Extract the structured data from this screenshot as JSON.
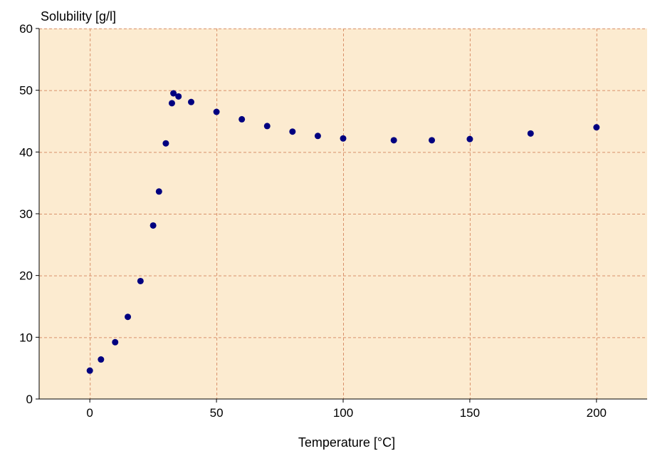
{
  "chart_data": {
    "type": "scatter",
    "ylabel": "Solubility [g/l]",
    "xlabel": "Temperature [°C]",
    "xlim": [
      -20,
      220
    ],
    "ylim": [
      0,
      60
    ],
    "x_ticks": [
      0,
      50,
      100,
      150,
      200
    ],
    "y_ticks": [
      0,
      10,
      20,
      30,
      40,
      50,
      60
    ],
    "grid": true,
    "colors": {
      "plot_background": "#fcebd0",
      "grid": "#d9916a",
      "marker": "#000080",
      "axis": "#000000"
    },
    "points": [
      {
        "x": 0,
        "y": 4.6
      },
      {
        "x": 4.4,
        "y": 6.4
      },
      {
        "x": 10,
        "y": 9.2
      },
      {
        "x": 15,
        "y": 13.3
      },
      {
        "x": 20,
        "y": 19.1
      },
      {
        "x": 25,
        "y": 28.1
      },
      {
        "x": 27.3,
        "y": 33.6
      },
      {
        "x": 30,
        "y": 41.4
      },
      {
        "x": 32.4,
        "y": 47.9
      },
      {
        "x": 33,
        "y": 49.5
      },
      {
        "x": 35,
        "y": 49.0
      },
      {
        "x": 40,
        "y": 48.1
      },
      {
        "x": 50,
        "y": 46.5
      },
      {
        "x": 60,
        "y": 45.3
      },
      {
        "x": 70,
        "y": 44.2
      },
      {
        "x": 80,
        "y": 43.3
      },
      {
        "x": 90,
        "y": 42.6
      },
      {
        "x": 100,
        "y": 42.2
      },
      {
        "x": 120,
        "y": 41.9
      },
      {
        "x": 135,
        "y": 41.9
      },
      {
        "x": 150,
        "y": 42.1
      },
      {
        "x": 174,
        "y": 43.0
      },
      {
        "x": 200,
        "y": 44.0
      }
    ]
  }
}
